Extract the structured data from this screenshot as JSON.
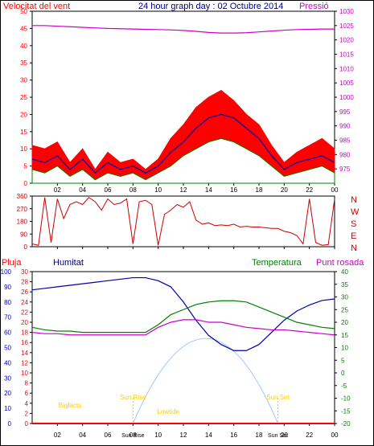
{
  "colors": {
    "wind": "#ff0000",
    "gust_fill": "#ff0000",
    "avg": "#0000aa",
    "low": "#008000",
    "pressure": "#cc00cc",
    "dir": "#cc0000",
    "rain": "#ff0000",
    "humidity": "#0000aa",
    "temperature": "#008000",
    "dewpoint": "#cc00cc",
    "solar": "#99ccff",
    "sunlabel": "#ffcc00",
    "grid": "#000000"
  },
  "chart_data": [
    {
      "type": "line",
      "title": "24 hour graph day : 02 Octubre 2014",
      "left_label": "Velocitat del vent",
      "right_label": "Pressió",
      "ylim": [
        0,
        50
      ],
      "y2lim": [
        970,
        1030
      ],
      "yticks": [
        "0",
        "5",
        "10",
        "15",
        "20",
        "25",
        "30",
        "35",
        "40",
        "45",
        "50"
      ],
      "y2ticks": [
        "975",
        "980",
        "985",
        "990",
        "995",
        "1000",
        "1005",
        "1010",
        "1015",
        "1020",
        "1025",
        "1030"
      ],
      "xticks": [
        "02",
        "04",
        "06",
        "08",
        "10",
        "12",
        "14",
        "16",
        "18",
        "20",
        "22",
        "00"
      ],
      "x": [
        0,
        1,
        2,
        3,
        4,
        5,
        6,
        7,
        8,
        9,
        10,
        11,
        12,
        13,
        14,
        15,
        16,
        17,
        18,
        19,
        20,
        21,
        22,
        23,
        24
      ],
      "series": [
        {
          "id": "gust",
          "values": [
            11,
            10,
            12,
            6,
            10,
            4,
            9,
            6,
            7,
            4,
            7,
            13,
            17,
            22,
            25,
            27,
            24,
            20,
            17,
            11,
            6,
            9,
            11,
            13,
            10
          ]
        },
        {
          "id": "average",
          "values": [
            7,
            6,
            8,
            4,
            7,
            3,
            6,
            4,
            5,
            3,
            5,
            9,
            12,
            16,
            19,
            20,
            19,
            16,
            13,
            8,
            4,
            6,
            7,
            8,
            6
          ]
        },
        {
          "id": "low",
          "values": [
            4,
            3,
            5,
            2,
            4,
            1,
            3,
            2,
            3,
            1,
            3,
            5,
            8,
            10,
            12,
            13,
            12,
            10,
            8,
            5,
            2,
            3,
            4,
            5,
            3
          ]
        },
        {
          "id": "pressure",
          "values": [
            1025,
            1025,
            1024.8,
            1024.6,
            1024.4,
            1024.2,
            1024,
            1023.9,
            1023.8,
            1023.7,
            1023.6,
            1023.5,
            1023.3,
            1023,
            1022.6,
            1022.4,
            1022.4,
            1022.5,
            1022.8,
            1023.1,
            1023.4,
            1023.6,
            1023.7,
            1023.8,
            1023.8
          ]
        }
      ]
    },
    {
      "type": "line",
      "right_labels": [
        "N",
        "W",
        "S",
        "E",
        "N"
      ],
      "ylim": [
        0,
        360
      ],
      "yticks": [
        "0",
        "90",
        "180",
        "270",
        "360"
      ],
      "xticks": [
        "02",
        "04",
        "06",
        "08",
        "10",
        "12",
        "14",
        "16",
        "18",
        "20",
        "22",
        "00"
      ],
      "x": [
        0,
        0.5,
        1,
        1.5,
        2,
        2.5,
        3,
        3.5,
        4,
        4.5,
        5,
        5.5,
        6,
        6.5,
        7,
        7.5,
        8,
        8.5,
        9,
        9.5,
        10,
        10.5,
        11,
        11.5,
        12,
        12.5,
        13,
        13.5,
        14,
        14.5,
        15,
        15.5,
        16,
        16.5,
        17,
        17.5,
        18,
        18.5,
        19,
        19.5,
        20,
        20.5,
        21,
        21.5,
        22,
        22.5,
        23,
        23.5,
        24
      ],
      "series": [
        {
          "id": "direction",
          "values": [
            20,
            10,
            350,
            30,
            340,
            200,
            300,
            320,
            300,
            350,
            320,
            260,
            340,
            300,
            310,
            340,
            20,
            320,
            330,
            300,
            10,
            230,
            260,
            300,
            280,
            320,
            190,
            160,
            170,
            150,
            155,
            150,
            160,
            140,
            145,
            140,
            140,
            135,
            130,
            130,
            110,
            100,
            80,
            20,
            340,
            30,
            10,
            15,
            340
          ]
        }
      ]
    },
    {
      "type": "line",
      "labels": {
        "rain": "Pluja",
        "humidity": "Humitat",
        "temperature": "Temperatura",
        "dewpoint": "Punt rosada"
      },
      "ylim_rain": [
        0,
        30
      ],
      "ylim_hum": [
        0,
        100
      ],
      "ylim_temp": [
        -20,
        40
      ],
      "rain_ticks": [
        "0",
        "2",
        "4",
        "6",
        "8",
        "10",
        "12",
        "14",
        "16",
        "18",
        "20",
        "22",
        "24",
        "26",
        "28",
        "30"
      ],
      "hum_ticks": [
        "0",
        "10",
        "20",
        "30",
        "40",
        "50",
        "60",
        "70",
        "80",
        "90",
        "100"
      ],
      "temp_ticks": [
        "-20",
        "-15",
        "-10",
        "-5",
        "0",
        "5",
        "10",
        "15",
        "20",
        "25",
        "30",
        "35",
        "40"
      ],
      "xticks": [
        "02",
        "04",
        "06",
        "08",
        "10",
        "12",
        "14",
        "16",
        "18",
        "20",
        "22",
        "00"
      ],
      "x": [
        0,
        1,
        2,
        3,
        4,
        5,
        6,
        7,
        8,
        9,
        10,
        11,
        12,
        13,
        14,
        15,
        16,
        17,
        18,
        19,
        20,
        21,
        22,
        23,
        24
      ],
      "series": [
        {
          "id": "humidity",
          "values": [
            88,
            89,
            90,
            91,
            92,
            93,
            94,
            95,
            96,
            96,
            94,
            90,
            80,
            68,
            58,
            52,
            48,
            48,
            52,
            60,
            68,
            74,
            78,
            81,
            82
          ]
        },
        {
          "id": "temperature",
          "values": [
            18,
            17,
            16.5,
            16.5,
            16,
            16,
            16,
            16,
            16,
            16,
            19,
            23,
            25,
            27,
            28,
            28.5,
            28.5,
            28,
            26,
            24,
            22,
            20,
            19,
            18,
            17.5
          ]
        },
        {
          "id": "dewpoint",
          "values": [
            16,
            15.5,
            15.5,
            15,
            15,
            15,
            15,
            15,
            15,
            15,
            18,
            20,
            21,
            21,
            20,
            20,
            19,
            18,
            17.5,
            17,
            17,
            16.5,
            16,
            15.5,
            15
          ]
        },
        {
          "id": "rain",
          "values": [
            0,
            0,
            0,
            0,
            0,
            0,
            0,
            0,
            0,
            0,
            0,
            0,
            0,
            0,
            0,
            0,
            0,
            0,
            0,
            0,
            0,
            0,
            0,
            0,
            0
          ]
        }
      ],
      "sun": {
        "rise_label": "Sun Rise",
        "set_label": "Sun Set",
        "bigfacts_label": "Bigfacts",
        "lowtide_label": "Lowtide",
        "sunrise_x": 8.0,
        "sunset_x": 19.5,
        "peak_x": 13.8,
        "peak_hum": 56,
        "bottom_labels": {
          "sun_rise": "Sun Rise",
          "sun_set": "Sun Set"
        }
      }
    }
  ]
}
